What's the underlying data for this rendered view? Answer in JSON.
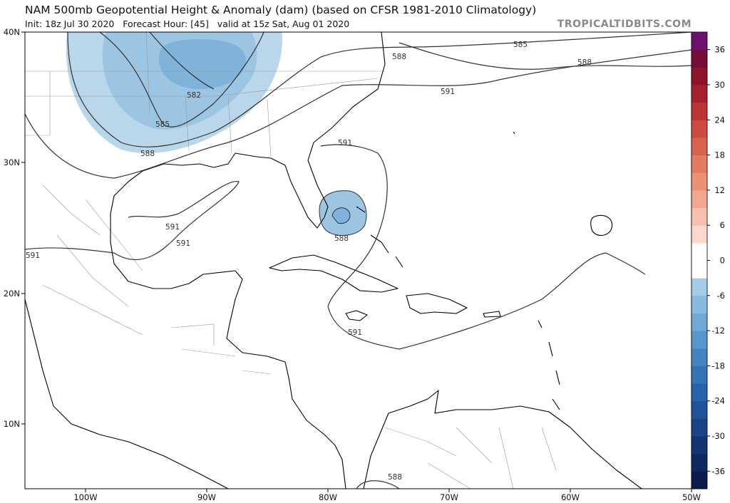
{
  "header": {
    "title": "NAM 500mb Geopotential Height & Anomaly (dam) (based on CFSR 1981-2010 Climatology)",
    "subtitle": "Init: 18z Jul 30 2020   Forecast Hour: [45]   valid at 15z Sat, Aug 01 2020",
    "credit": "TROPICALTIDBITS.COM"
  },
  "map": {
    "lat_labels": [
      "40N",
      "30N",
      "20N",
      "10N"
    ],
    "lon_labels": [
      "100W",
      "90W",
      "80W",
      "70W",
      "60W",
      "50W"
    ],
    "contour_labels": [
      "585",
      "588",
      "591",
      "588",
      "582",
      "585",
      "588",
      "591",
      "591",
      "591",
      "591",
      "588",
      "591",
      "588"
    ]
  },
  "colorbar": {
    "range": [
      -39,
      39
    ],
    "ticks": [
      36,
      30,
      24,
      18,
      12,
      6,
      0,
      -6,
      -12,
      -18,
      -24,
      -30,
      -36
    ],
    "colors": [
      "#0b1b4d",
      "#10275f",
      "#143474",
      "#1a4388",
      "#20529b",
      "#2862a9",
      "#3374b6",
      "#4485c1",
      "#5897cb",
      "#70a9d5",
      "#89badf",
      "#a4cbe7",
      "#ffffff",
      "#ffffff",
      "#fbd7cc",
      "#f7c0ae",
      "#f2a890",
      "#ec9176",
      "#e47a61",
      "#d9624f",
      "#cc4a41",
      "#bb3436",
      "#a5212f",
      "#8d1429",
      "#760c3a",
      "#6f0f6e"
    ]
  }
}
